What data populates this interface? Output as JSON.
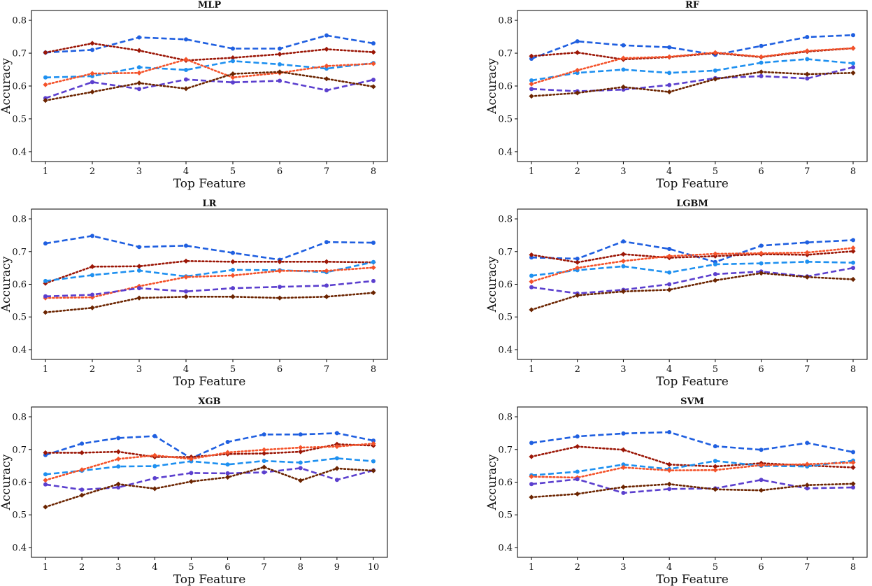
{
  "chart_data": [
    {
      "type": "line",
      "title": "MLP",
      "xlabel": "Top Feature",
      "ylabel": "Accuracy",
      "x": [
        1,
        2,
        3,
        4,
        5,
        6,
        7,
        8
      ],
      "xticks": [
        "1",
        "2",
        "3",
        "4",
        "5",
        "6",
        "7",
        "8"
      ],
      "ylim": [
        0.37,
        0.83
      ],
      "yticks": [
        "0.4",
        "0.5",
        "0.6",
        "0.7",
        "0.8"
      ],
      "series": [
        {
          "name": "series-1",
          "color": "#1f5fe0",
          "style": "dashed",
          "values": [
            0.702,
            0.71,
            0.748,
            0.742,
            0.714,
            0.714,
            0.754,
            0.73
          ]
        },
        {
          "name": "series-2",
          "color": "#9b1606",
          "style": "dotted",
          "values": [
            0.702,
            0.73,
            0.708,
            0.678,
            0.686,
            0.697,
            0.712,
            0.703
          ]
        },
        {
          "name": "series-3",
          "color": "#1e90f0",
          "style": "dashed",
          "values": [
            0.626,
            0.63,
            0.657,
            0.649,
            0.676,
            0.666,
            0.653,
            0.67
          ]
        },
        {
          "name": "series-4",
          "color": "#f4522a",
          "style": "dotted",
          "values": [
            0.604,
            0.638,
            0.64,
            0.681,
            0.626,
            0.64,
            0.661,
            0.668
          ]
        },
        {
          "name": "series-5",
          "color": "#5b3fce",
          "style": "dashed",
          "values": [
            0.563,
            0.612,
            0.591,
            0.62,
            0.611,
            0.616,
            0.587,
            0.619
          ]
        },
        {
          "name": "series-6",
          "color": "#6b2400",
          "style": "dotted",
          "values": [
            0.556,
            0.582,
            0.609,
            0.592,
            0.637,
            0.643,
            0.622,
            0.598
          ]
        }
      ]
    },
    {
      "type": "line",
      "title": "RF",
      "xlabel": "Top Feature",
      "ylabel": "Accuracy",
      "x": [
        1,
        2,
        3,
        4,
        5,
        6,
        7,
        8
      ],
      "xticks": [
        "1",
        "2",
        "3",
        "4",
        "5",
        "6",
        "7",
        "8"
      ],
      "ylim": [
        0.37,
        0.83
      ],
      "yticks": [
        "0.4",
        "0.5",
        "0.6",
        "0.7",
        "0.8"
      ],
      "series": [
        {
          "name": "series-1",
          "color": "#1f5fe0",
          "style": "dashed",
          "values": [
            0.683,
            0.736,
            0.724,
            0.718,
            0.695,
            0.722,
            0.749,
            0.755
          ]
        },
        {
          "name": "series-2",
          "color": "#9b1606",
          "style": "dotted",
          "values": [
            0.691,
            0.702,
            0.681,
            0.688,
            0.7,
            0.688,
            0.705,
            0.715
          ]
        },
        {
          "name": "series-3",
          "color": "#1e90f0",
          "style": "dashed",
          "values": [
            0.617,
            0.64,
            0.65,
            0.64,
            0.647,
            0.671,
            0.682,
            0.669
          ]
        },
        {
          "name": "series-4",
          "color": "#f4522a",
          "style": "dotted",
          "values": [
            0.606,
            0.648,
            0.685,
            0.689,
            0.702,
            0.689,
            0.707,
            0.715
          ]
        },
        {
          "name": "series-5",
          "color": "#5b3fce",
          "style": "dashed",
          "values": [
            0.591,
            0.584,
            0.589,
            0.603,
            0.624,
            0.63,
            0.623,
            0.657
          ]
        },
        {
          "name": "series-6",
          "color": "#6b2400",
          "style": "dotted",
          "values": [
            0.569,
            0.579,
            0.597,
            0.582,
            0.621,
            0.643,
            0.636,
            0.64
          ]
        }
      ]
    },
    {
      "type": "line",
      "title": "LR",
      "xlabel": "Top Feature",
      "ylabel": "Accuracy",
      "x": [
        1,
        2,
        3,
        4,
        5,
        6,
        7,
        8
      ],
      "xticks": [
        "1",
        "2",
        "3",
        "4",
        "5",
        "6",
        "7",
        "8"
      ],
      "ylim": [
        0.37,
        0.83
      ],
      "yticks": [
        "0.4",
        "0.5",
        "0.6",
        "0.7",
        "0.8"
      ],
      "series": [
        {
          "name": "series-1",
          "color": "#1f5fe0",
          "style": "dashed",
          "values": [
            0.725,
            0.748,
            0.714,
            0.718,
            0.696,
            0.675,
            0.729,
            0.727
          ]
        },
        {
          "name": "series-2",
          "color": "#9b1606",
          "style": "dotted",
          "values": [
            0.603,
            0.654,
            0.655,
            0.671,
            0.669,
            0.669,
            0.669,
            0.667
          ]
        },
        {
          "name": "series-3",
          "color": "#1e90f0",
          "style": "dashed",
          "values": [
            0.61,
            0.628,
            0.642,
            0.624,
            0.644,
            0.643,
            0.637,
            0.668
          ]
        },
        {
          "name": "series-4",
          "color": "#f4522a",
          "style": "dotted",
          "values": [
            0.558,
            0.56,
            0.594,
            0.622,
            0.627,
            0.641,
            0.641,
            0.651
          ]
        },
        {
          "name": "series-5",
          "color": "#5b3fce",
          "style": "dashed",
          "values": [
            0.563,
            0.568,
            0.588,
            0.578,
            0.588,
            0.592,
            0.596,
            0.61
          ]
        },
        {
          "name": "series-6",
          "color": "#6b2400",
          "style": "dotted",
          "values": [
            0.514,
            0.528,
            0.558,
            0.562,
            0.562,
            0.558,
            0.562,
            0.574
          ]
        }
      ]
    },
    {
      "type": "line",
      "title": "LGBM",
      "xlabel": "Top Feature",
      "ylabel": "Accuracy",
      "x": [
        1,
        2,
        3,
        4,
        5,
        6,
        7,
        8
      ],
      "xticks": [
        "1",
        "2",
        "3",
        "4",
        "5",
        "6",
        "7",
        "8"
      ],
      "ylim": [
        0.37,
        0.83
      ],
      "yticks": [
        "0.4",
        "0.5",
        "0.6",
        "0.7",
        "0.8"
      ],
      "series": [
        {
          "name": "series-1",
          "color": "#1f5fe0",
          "style": "dashed",
          "values": [
            0.682,
            0.678,
            0.731,
            0.708,
            0.668,
            0.718,
            0.728,
            0.735
          ]
        },
        {
          "name": "series-2",
          "color": "#9b1606",
          "style": "dotted",
          "values": [
            0.69,
            0.667,
            0.692,
            0.681,
            0.686,
            0.692,
            0.69,
            0.701
          ]
        },
        {
          "name": "series-3",
          "color": "#1e90f0",
          "style": "dashed",
          "values": [
            0.626,
            0.643,
            0.655,
            0.636,
            0.661,
            0.664,
            0.669,
            0.666
          ]
        },
        {
          "name": "series-4",
          "color": "#f4522a",
          "style": "dotted",
          "values": [
            0.608,
            0.65,
            0.671,
            0.686,
            0.693,
            0.695,
            0.697,
            0.711
          ]
        },
        {
          "name": "series-5",
          "color": "#5b3fce",
          "style": "dashed",
          "values": [
            0.591,
            0.572,
            0.583,
            0.6,
            0.631,
            0.639,
            0.624,
            0.65
          ]
        },
        {
          "name": "series-6",
          "color": "#6b2400",
          "style": "dotted",
          "values": [
            0.522,
            0.566,
            0.578,
            0.583,
            0.612,
            0.634,
            0.622,
            0.615
          ]
        }
      ]
    },
    {
      "type": "line",
      "title": "XGB",
      "xlabel": "Top Feature",
      "ylabel": "Accuracy",
      "x": [
        1,
        2,
        3,
        4,
        5,
        6,
        7,
        8,
        9,
        10
      ],
      "xticks": [
        "1",
        "2",
        "3",
        "4",
        "5",
        "6",
        "7",
        "8",
        "9",
        "10"
      ],
      "ylim": [
        0.37,
        0.83
      ],
      "yticks": [
        "0.4",
        "0.5",
        "0.6",
        "0.7",
        "0.8"
      ],
      "series": [
        {
          "name": "series-1",
          "color": "#1f5fe0",
          "style": "dashed",
          "values": [
            0.683,
            0.718,
            0.735,
            0.741,
            0.673,
            0.723,
            0.746,
            0.746,
            0.75,
            0.727
          ]
        },
        {
          "name": "series-2",
          "color": "#9b1606",
          "style": "dotted",
          "values": [
            0.69,
            0.69,
            0.693,
            0.677,
            0.677,
            0.686,
            0.688,
            0.693,
            0.716,
            0.712
          ]
        },
        {
          "name": "series-3",
          "color": "#1e90f0",
          "style": "dashed",
          "values": [
            0.624,
            0.635,
            0.648,
            0.649,
            0.664,
            0.654,
            0.665,
            0.66,
            0.673,
            0.664
          ]
        },
        {
          "name": "series-4",
          "color": "#f4522a",
          "style": "dotted",
          "values": [
            0.606,
            0.638,
            0.671,
            0.682,
            0.671,
            0.691,
            0.699,
            0.706,
            0.709,
            0.718
          ]
        },
        {
          "name": "series-5",
          "color": "#5b3fce",
          "style": "dashed",
          "values": [
            0.593,
            0.577,
            0.584,
            0.612,
            0.628,
            0.627,
            0.63,
            0.643,
            0.607,
            0.636
          ]
        },
        {
          "name": "series-6",
          "color": "#6b2400",
          "style": "dotted",
          "values": [
            0.524,
            0.56,
            0.594,
            0.58,
            0.602,
            0.615,
            0.646,
            0.605,
            0.642,
            0.635
          ]
        }
      ]
    },
    {
      "type": "line",
      "title": "SVM",
      "xlabel": "Top Feature",
      "ylabel": "Accuracy",
      "x": [
        1,
        2,
        3,
        4,
        5,
        6,
        7,
        8
      ],
      "xticks": [
        "1",
        "2",
        "3",
        "4",
        "5",
        "6",
        "7",
        "8"
      ],
      "ylim": [
        0.37,
        0.83
      ],
      "yticks": [
        "0.4",
        "0.5",
        "0.6",
        "0.7",
        "0.8"
      ],
      "series": [
        {
          "name": "series-1",
          "color": "#1f5fe0",
          "style": "dashed",
          "values": [
            0.72,
            0.74,
            0.749,
            0.753,
            0.71,
            0.699,
            0.72,
            0.692
          ]
        },
        {
          "name": "series-2",
          "color": "#9b1606",
          "style": "dotted",
          "values": [
            0.678,
            0.709,
            0.699,
            0.654,
            0.648,
            0.658,
            0.651,
            0.645
          ]
        },
        {
          "name": "series-3",
          "color": "#1e90f0",
          "style": "dashed",
          "values": [
            0.621,
            0.632,
            0.654,
            0.64,
            0.665,
            0.65,
            0.648,
            0.666
          ]
        },
        {
          "name": "series-4",
          "color": "#f4522a",
          "style": "dotted",
          "values": [
            0.617,
            0.614,
            0.645,
            0.636,
            0.637,
            0.652,
            0.655,
            0.66
          ]
        },
        {
          "name": "series-5",
          "color": "#5b3fce",
          "style": "dashed",
          "values": [
            0.594,
            0.609,
            0.567,
            0.579,
            0.581,
            0.607,
            0.581,
            0.584
          ]
        },
        {
          "name": "series-6",
          "color": "#6b2400",
          "style": "dotted",
          "values": [
            0.554,
            0.564,
            0.585,
            0.594,
            0.578,
            0.575,
            0.591,
            0.595
          ]
        }
      ]
    }
  ]
}
